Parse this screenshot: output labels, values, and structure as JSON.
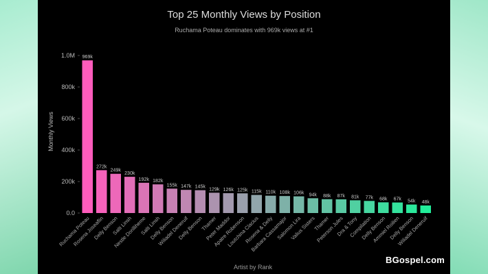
{
  "watermark": "BGospel.com",
  "chart_data": {
    "type": "bar",
    "title": "Top 25 Monthly Views by Position",
    "subtitle": "Ruchama Poteau dominates with 969k views at #1",
    "xlabel": "Artist by Rank",
    "ylabel": "Monthly Views",
    "ylim": [
      0,
      1000000
    ],
    "yticks": [
      0,
      200000,
      400000,
      600000,
      800000,
      1000000
    ],
    "ytick_labels": [
      "0.0",
      "200k",
      "400k",
      "600k",
      "800k",
      "1.0M"
    ],
    "grid": false,
    "legend": "none",
    "colors": {
      "background": "#000000",
      "start": "#ff5cbc",
      "end": "#22ee9a",
      "text": "#cccccc",
      "title": "#dddddd"
    },
    "categories": [
      "Ruchama Poteau",
      "Rosena Joseaflin",
      "Delly Benson",
      "Salti Linsh",
      "Nestle Dorilliheme",
      "Salti Linsh",
      "Delly Benson",
      "Wiliadel Deneruif",
      "Delly Benson",
      "Thamer",
      "Peter Maddor",
      "Apatre Robenson",
      "Loutchina Clacius",
      "Rosena & Delly",
      "Barbara Cassamajor",
      "Salomon Lira",
      "Valius Sisters",
      "Thamer",
      "Peterson Jules",
      "Dra & Tony",
      "Compilation",
      "Delly Benson",
      "Ammiel Roilien",
      "Delly Benson",
      "Wiliadel Deneruif"
    ],
    "values": [
      969000,
      272000,
      249000,
      230000,
      192000,
      182000,
      155000,
      147000,
      145000,
      129000,
      126000,
      125000,
      115000,
      110000,
      108000,
      106000,
      94000,
      88000,
      87000,
      81000,
      77000,
      68000,
      67000,
      54000,
      48000
    ],
    "value_labels": [
      "969k",
      "272k",
      "249k",
      "230k",
      "192k",
      "182k",
      "155k",
      "147k",
      "145k",
      "129k",
      "126k",
      "125k",
      "115k",
      "110k",
      "108k",
      "106k",
      "94k",
      "88k",
      "87k",
      "81k",
      "77k",
      "68k",
      "67k",
      "54k",
      "48k"
    ]
  }
}
